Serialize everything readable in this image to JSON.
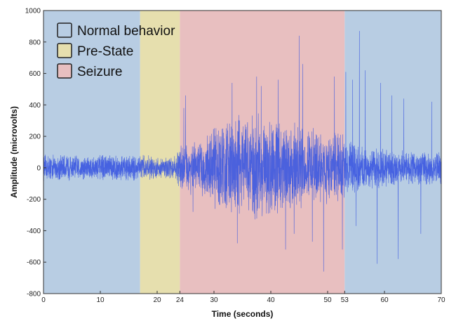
{
  "chart_data": {
    "type": "line",
    "xlabel": "Time (seconds)",
    "ylabel": "Amplitude (microvolts)",
    "xlim": [
      0,
      70
    ],
    "ylim": [
      -800,
      1000
    ],
    "x_ticks": [
      0,
      10,
      20,
      24,
      30,
      40,
      50,
      53,
      60,
      70
    ],
    "y_ticks": [
      -800,
      -600,
      -400,
      -200,
      0,
      200,
      400,
      600,
      800,
      1000
    ],
    "regions": [
      {
        "label": "Normal behavior",
        "start": 0,
        "end": 17,
        "color": "#b8cde3"
      },
      {
        "label": "Pre-State",
        "start": 17,
        "end": 24,
        "color": "#e6dfae"
      },
      {
        "label": "Seizure",
        "start": 24,
        "end": 53,
        "color": "#e8bfc0"
      },
      {
        "label": "",
        "start": 53,
        "end": 70,
        "color": "#b8cde3"
      }
    ],
    "legend": {
      "placement": "top-left",
      "items": [
        {
          "label": "Normal behavior",
          "color": "#b8cde3"
        },
        {
          "label": "Pre-State",
          "color": "#e6dfae"
        },
        {
          "label": "Seizure",
          "color": "#e8bfc0"
        }
      ]
    },
    "series": [
      {
        "color": "#3a56e0",
        "envelope": {
          "t": [
            0,
            17,
            20,
            23,
            24,
            25,
            26,
            28,
            30,
            34,
            38,
            41,
            44,
            47,
            50,
            52.9,
            53,
            56,
            60,
            65,
            70
          ],
          "amp": [
            80,
            80,
            70,
            70,
            140,
            180,
            160,
            170,
            250,
            330,
            330,
            310,
            270,
            240,
            220,
            200,
            170,
            150,
            120,
            100,
            100
          ]
        },
        "spikes": [
          {
            "t": 25.0,
            "v": 460
          },
          {
            "t": 24.7,
            "v": 380
          },
          {
            "t": 26.3,
            "v": -280
          },
          {
            "t": 33.2,
            "v": 540
          },
          {
            "t": 34.1,
            "v": -480
          },
          {
            "t": 37.5,
            "v": 580
          },
          {
            "t": 38.3,
            "v": 520
          },
          {
            "t": 41.3,
            "v": 560
          },
          {
            "t": 42.6,
            "v": -520
          },
          {
            "t": 44.1,
            "v": -420
          },
          {
            "t": 45.0,
            "v": 840
          },
          {
            "t": 45.6,
            "v": 660
          },
          {
            "t": 47.3,
            "v": -470
          },
          {
            "t": 49.3,
            "v": -660
          },
          {
            "t": 51.2,
            "v": 580
          },
          {
            "t": 52.6,
            "v": -520
          },
          {
            "t": 53.2,
            "v": 610
          },
          {
            "t": 54.4,
            "v": 560
          },
          {
            "t": 55.0,
            "v": -370
          },
          {
            "t": 55.6,
            "v": 870
          },
          {
            "t": 56.6,
            "v": 620
          },
          {
            "t": 58.7,
            "v": -610
          },
          {
            "t": 59.3,
            "v": 540
          },
          {
            "t": 61.3,
            "v": 460
          },
          {
            "t": 62.4,
            "v": -580
          },
          {
            "t": 63.4,
            "v": 440
          },
          {
            "t": 66.4,
            "v": -420
          },
          {
            "t": 68.3,
            "v": 420
          }
        ]
      }
    ]
  }
}
